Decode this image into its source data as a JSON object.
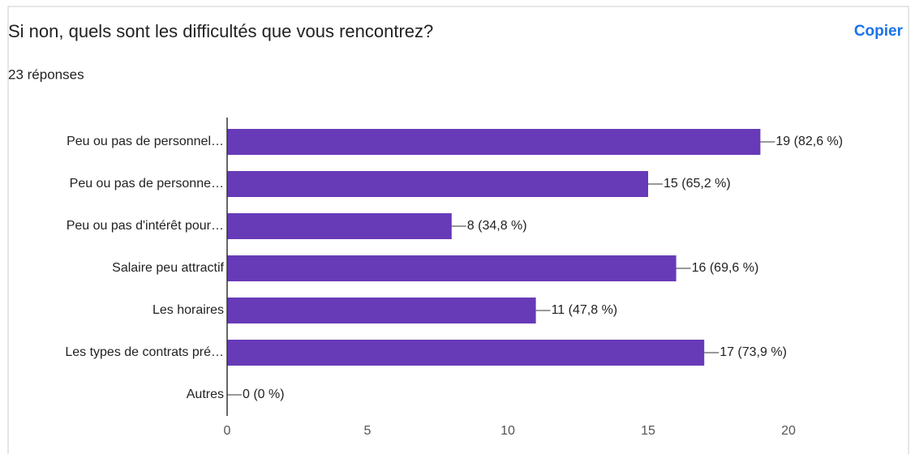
{
  "chart_data": {
    "type": "hbar",
    "title": "Si non, quels sont les difficultés que vous rencontrez?",
    "subtitle": "23 réponses",
    "button": "Copier",
    "categories": [
      "Peu ou pas de personnel…",
      "Peu ou pas de personne…",
      "Peu ou pas d'intérêt pour…",
      "Salaire peu attractif",
      "Les horaires",
      "Les types de contrats pré…",
      "Autres"
    ],
    "values": [
      19,
      15,
      8,
      16,
      11,
      17,
      0
    ],
    "value_labels": [
      "19 (82,6 %)",
      "15 (65,2 %)",
      "8 (34,8 %)",
      "16 (69,6 %)",
      "11 (47,8 %)",
      "17 (73,9 %)",
      "0 (0 %)"
    ],
    "color": "#673ab7",
    "xlim": [
      0,
      20
    ],
    "xticks": [
      0,
      5,
      10,
      15,
      20
    ],
    "grid": false
  }
}
